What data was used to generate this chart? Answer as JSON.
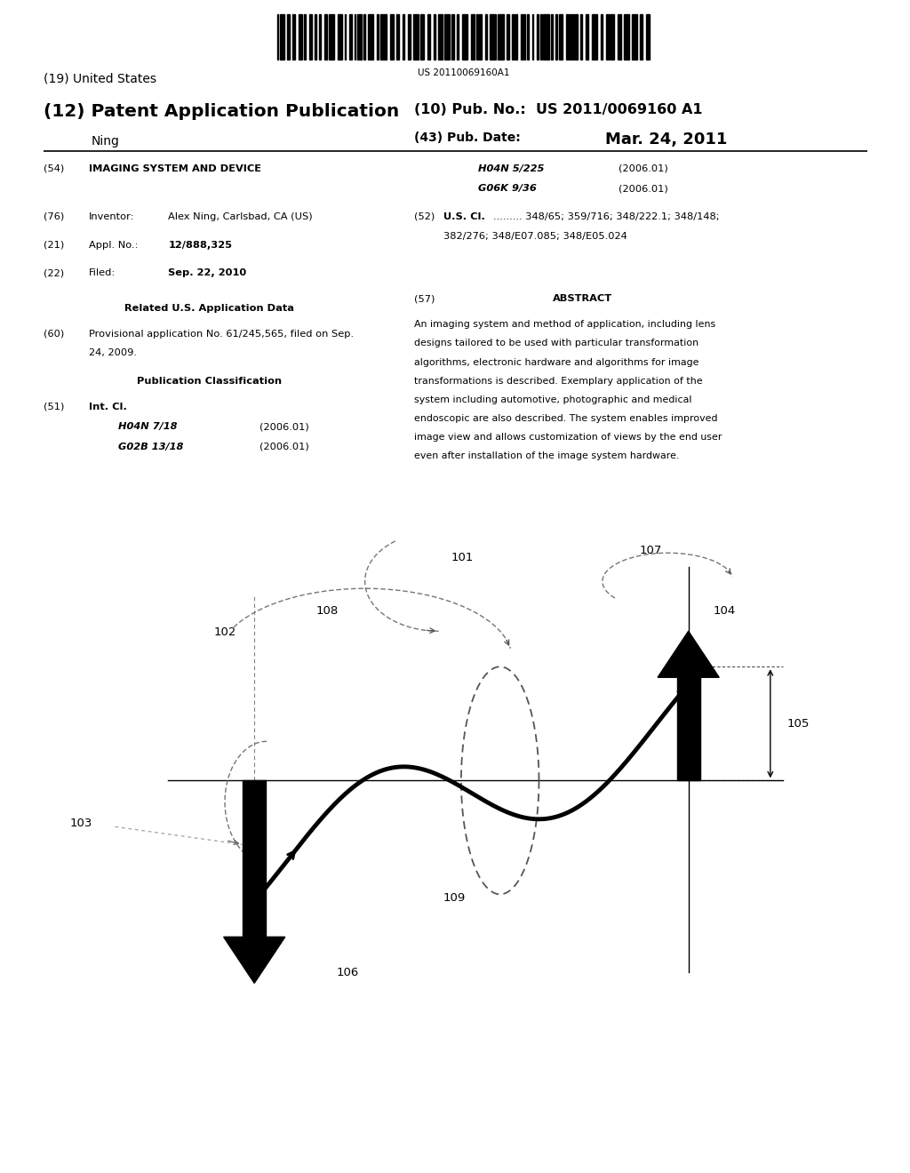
{
  "title_19": "(19) United States",
  "title_12": "(12) Patent Application Publication",
  "inventor_name": "Ning",
  "pub_no_label": "(10) Pub. No.:",
  "pub_no": "US 2011/0069160 A1",
  "pub_date_label": "(43) Pub. Date:",
  "pub_date": "Mar. 24, 2011",
  "barcode_text": "US 20110069160A1",
  "field54_label": "(54)",
  "field54": "IMAGING SYSTEM AND DEVICE",
  "field76_label": "(76)",
  "field76_key": "Inventor:",
  "field76_val": "Alex Ning, Carlsbad, CA (US)",
  "field21_label": "(21)",
  "field21_key": "Appl. No.:",
  "field21_val": "12/888,325",
  "field22_label": "(22)",
  "field22_key": "Filed:",
  "field22_val": "Sep. 22, 2010",
  "related_header": "Related U.S. Application Data",
  "field60_label": "(60)",
  "field60_line1": "Provisional application No. 61/245,565, filed on Sep.",
  "field60_line2": "24, 2009.",
  "pub_class_header": "Publication Classification",
  "field51_label": "(51)",
  "field51_key": "Int. Cl.",
  "field51_e1_code": "H04N 7/18",
  "field51_e1_year": "(2006.01)",
  "field51_e2_code": "G02B 13/18",
  "field51_e2_year": "(2006.01)",
  "right_class1": "H04N 5/225",
  "right_class1_year": "(2006.01)",
  "right_class2": "G06K 9/36",
  "right_class2_year": "(2006.01)",
  "field52_label": "(52)",
  "field52_key": "U.S. Cl.",
  "field52_line1": "......... 348/65; 359/716; 348/222.1; 348/148;",
  "field52_line2": "382/276; 348/E07.085; 348/E05.024",
  "field57_label": "(57)",
  "field57_header": "ABSTRACT",
  "abstract_line1": "An imaging system and method of application, including lens",
  "abstract_line2": "designs tailored to be used with particular transformation",
  "abstract_line3": "algorithms, electronic hardware and algorithms for image",
  "abstract_line4": "transformations is described. Exemplary application of the",
  "abstract_line5": "system including automotive, photographic and medical",
  "abstract_line6": "endoscopic are also described. The system enables improved",
  "abstract_line7": "image view and allows customization of views by the end user",
  "abstract_line8": "even after installation of the image system hardware.",
  "bg_color": "#ffffff",
  "text_color": "#000000",
  "label_101": "101",
  "label_102": "102",
  "label_103": "103",
  "label_104": "104",
  "label_105": "105",
  "label_106": "106",
  "label_107": "107",
  "label_108": "108",
  "label_109": "109"
}
